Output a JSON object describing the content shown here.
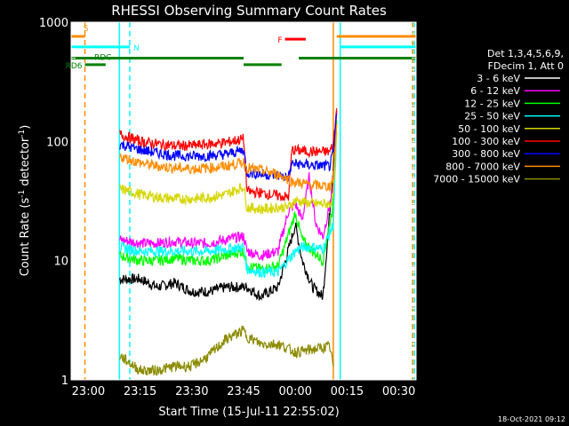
{
  "chart_data": {
    "type": "line",
    "title": "RHESSI Observing Summary Count Rates",
    "xlabel": "Start Time (15-Jul-11 22:55:02)",
    "ylabel_main": "Count Rate (s",
    "ylabel_sup1": "-1",
    "ylabel_mid": " detector",
    "ylabel_sup2": "-1",
    "ylabel_end": ")",
    "timestamp": "18-Oct-2021 09:12",
    "yscale": "log",
    "ylim": [
      1,
      1000
    ],
    "xlim_minutes": [
      -5,
      95
    ],
    "x_ticks": [
      {
        "label": "23:00",
        "min": 0
      },
      {
        "label": "23:15",
        "min": 15
      },
      {
        "label": "23:30",
        "min": 30
      },
      {
        "label": "23:45",
        "min": 45
      },
      {
        "label": "00:00",
        "min": 60
      },
      {
        "label": "00:15",
        "min": 75
      },
      {
        "label": "00:30",
        "min": 90
      }
    ],
    "y_ticks": [
      {
        "label": "1",
        "value": 1
      },
      {
        "label": "10",
        "value": 10
      },
      {
        "label": "100",
        "value": 100
      },
      {
        "label": "1000",
        "value": 1000
      }
    ],
    "legend": {
      "header1": "Det 1,3,4,5,6,9,",
      "header2": "FDecim 1, Att 0",
      "entries": [
        {
          "label": "3 - 6 keV",
          "color": "#ffffff"
        },
        {
          "label": "6 - 12 keV",
          "color": "#ff00ff"
        },
        {
          "label": "12 - 25 keV",
          "color": "#00ff00"
        },
        {
          "label": "25 - 50 keV",
          "color": "#00ffff"
        },
        {
          "label": "50 - 100 keV",
          "color": "#d6d600"
        },
        {
          "label": "100 - 300 keV",
          "color": "#ff0000"
        },
        {
          "label": "300 - 800 keV",
          "color": "#0000ff"
        },
        {
          "label": "800 - 7000 keV",
          "color": "#ff8c00"
        },
        {
          "label": "7000 - 15000 keV",
          "color": "#8b8b00"
        }
      ]
    },
    "series": [
      {
        "name": "3 - 6 keV",
        "color": "#000000",
        "points": [
          [
            9,
            7
          ],
          [
            15,
            7
          ],
          [
            20,
            6
          ],
          [
            25,
            6.5
          ],
          [
            30,
            5.5
          ],
          [
            35,
            5.5
          ],
          [
            40,
            6
          ],
          [
            45,
            6
          ],
          [
            46,
            6
          ],
          [
            50,
            5
          ],
          [
            55,
            6
          ],
          [
            60,
            20
          ],
          [
            62,
            10
          ],
          [
            65,
            6
          ],
          [
            68,
            5
          ],
          [
            71,
            60
          ],
          [
            72,
            180
          ]
        ]
      },
      {
        "name": "6 - 12 keV",
        "color": "#ff00ff",
        "points": [
          [
            9,
            15
          ],
          [
            15,
            14
          ],
          [
            20,
            14
          ],
          [
            25,
            14.5
          ],
          [
            30,
            14
          ],
          [
            35,
            14
          ],
          [
            40,
            15
          ],
          [
            45,
            16
          ],
          [
            46,
            12
          ],
          [
            50,
            11
          ],
          [
            55,
            12
          ],
          [
            58,
            26
          ],
          [
            60,
            30
          ],
          [
            62,
            22
          ],
          [
            64,
            50
          ],
          [
            66,
            20
          ],
          [
            68,
            16
          ],
          [
            71,
            40
          ],
          [
            72,
            180
          ]
        ]
      },
      {
        "name": "12 - 25 keV",
        "color": "#00ff00",
        "points": [
          [
            9,
            11
          ],
          [
            15,
            10
          ],
          [
            20,
            10
          ],
          [
            25,
            10.5
          ],
          [
            30,
            10
          ],
          [
            35,
            10
          ],
          [
            40,
            11
          ],
          [
            45,
            12
          ],
          [
            46,
            9
          ],
          [
            50,
            8.5
          ],
          [
            55,
            9
          ],
          [
            60,
            25
          ],
          [
            62,
            15
          ],
          [
            65,
            12
          ],
          [
            68,
            10
          ],
          [
            71,
            30
          ],
          [
            72,
            150
          ]
        ]
      },
      {
        "name": "25 - 50 keV",
        "color": "#00ffff",
        "points": [
          [
            9,
            13
          ],
          [
            15,
            12
          ],
          [
            20,
            12
          ],
          [
            25,
            12
          ],
          [
            30,
            12
          ],
          [
            35,
            12
          ],
          [
            40,
            12.5
          ],
          [
            45,
            13
          ],
          [
            46,
            8.5
          ],
          [
            50,
            8
          ],
          [
            55,
            8
          ],
          [
            60,
            12
          ],
          [
            62,
            13
          ],
          [
            65,
            13
          ],
          [
            68,
            12.5
          ],
          [
            71,
            20
          ],
          [
            72,
            120
          ]
        ]
      },
      {
        "name": "50 - 100 keV",
        "color": "#d6d600",
        "points": [
          [
            9,
            40
          ],
          [
            15,
            36
          ],
          [
            20,
            34
          ],
          [
            25,
            33
          ],
          [
            30,
            33
          ],
          [
            35,
            34
          ],
          [
            40,
            36
          ],
          [
            45,
            42
          ],
          [
            46,
            28
          ],
          [
            50,
            27
          ],
          [
            55,
            28
          ],
          [
            58,
            28
          ],
          [
            60,
            32
          ],
          [
            65,
            30
          ],
          [
            70,
            30
          ],
          [
            71,
            35
          ],
          [
            72,
            120
          ]
        ]
      },
      {
        "name": "100 - 300 keV",
        "color": "#ff0000",
        "points": [
          [
            9,
            115
          ],
          [
            15,
            100
          ],
          [
            20,
            95
          ],
          [
            25,
            92
          ],
          [
            30,
            92
          ],
          [
            35,
            95
          ],
          [
            40,
            98
          ],
          [
            45,
            105
          ],
          [
            46,
            38
          ],
          [
            50,
            37
          ],
          [
            55,
            35
          ],
          [
            58,
            34
          ],
          [
            59,
            85
          ],
          [
            65,
            82
          ],
          [
            70,
            82
          ],
          [
            71,
            95
          ],
          [
            72,
            190
          ]
        ]
      },
      {
        "name": "300 - 800 keV",
        "color": "#0000ff",
        "points": [
          [
            9,
            95
          ],
          [
            15,
            85
          ],
          [
            20,
            80
          ],
          [
            25,
            76
          ],
          [
            30,
            75
          ],
          [
            35,
            76
          ],
          [
            40,
            78
          ],
          [
            45,
            85
          ],
          [
            46,
            55
          ],
          [
            50,
            53
          ],
          [
            55,
            52
          ],
          [
            58,
            50
          ],
          [
            59,
            65
          ],
          [
            65,
            63
          ],
          [
            70,
            62
          ],
          [
            71,
            80
          ],
          [
            72,
            170
          ]
        ]
      },
      {
        "name": "800 - 7000 keV",
        "color": "#ff8c00",
        "points": [
          [
            9,
            75
          ],
          [
            15,
            66
          ],
          [
            20,
            62
          ],
          [
            25,
            60
          ],
          [
            30,
            59
          ],
          [
            35,
            60
          ],
          [
            40,
            62
          ],
          [
            45,
            67
          ],
          [
            46,
            60
          ],
          [
            50,
            57
          ],
          [
            55,
            53
          ],
          [
            58,
            48
          ],
          [
            59,
            46
          ],
          [
            65,
            43
          ],
          [
            70,
            42
          ],
          [
            71,
            50
          ],
          [
            72,
            140
          ]
        ]
      },
      {
        "name": "7000 - 15000 keV",
        "color": "#8b8b00",
        "points": [
          [
            9,
            1.6
          ],
          [
            15,
            1.2
          ],
          [
            20,
            1.2
          ],
          [
            25,
            1.3
          ],
          [
            30,
            1.3
          ],
          [
            35,
            1.6
          ],
          [
            40,
            2.2
          ],
          [
            45,
            2.6
          ],
          [
            46,
            2.3
          ],
          [
            50,
            2
          ],
          [
            55,
            2
          ],
          [
            60,
            1.7
          ],
          [
            65,
            1.8
          ],
          [
            70,
            1.9
          ],
          [
            71,
            1.3
          ]
        ]
      }
    ],
    "state_bars": [
      {
        "label": "S",
        "color": "#ff8c00",
        "y": 760,
        "x0": -5,
        "x1": -1,
        "label_pos": "start"
      },
      {
        "label": "",
        "color": "#ff8c00",
        "y": 760,
        "x0": 72,
        "x1": 95,
        "label_pos": "none"
      },
      {
        "label": "N",
        "color": "#00ffff",
        "y": 620,
        "x0": -5,
        "x1": 12,
        "label_pos": "end"
      },
      {
        "label": "",
        "color": "#00ffff",
        "y": 620,
        "x0": 73,
        "x1": 95,
        "label_pos": "none"
      },
      {
        "label": "RDC",
        "color": "#008000",
        "y": 500,
        "x0": -5,
        "x1": 45,
        "label_pos": "start_offset"
      },
      {
        "label": "",
        "color": "#008000",
        "y": 440,
        "x0": 45,
        "x1": 56,
        "label_pos": "none"
      },
      {
        "label": "",
        "color": "#008000",
        "y": 500,
        "x0": 61,
        "x1": 95,
        "label_pos": "none"
      },
      {
        "label": "RD6",
        "color": "#008000",
        "y": 440,
        "x0": -1,
        "x1": 5,
        "label_pos": "start_left"
      },
      {
        "label": "F",
        "color": "#ff0000",
        "y": 720,
        "x0": 57,
        "x1": 63,
        "label_pos": "start_left"
      }
    ],
    "vlines": [
      {
        "min": -1,
        "color": "#ff8c00",
        "style": "dash"
      },
      {
        "min": 12,
        "color": "#00ffff",
        "style": "dash"
      },
      {
        "min": 9,
        "color": "#00ffff",
        "style": "solid"
      },
      {
        "min": 71,
        "color": "#ff8c00",
        "style": "solid"
      },
      {
        "min": 73,
        "color": "#00ffff",
        "style": "solid"
      },
      {
        "min": 94,
        "color": "#ff8c00",
        "style": "dash"
      },
      {
        "min": 94.5,
        "color": "#00ffff",
        "style": "dash"
      }
    ]
  }
}
